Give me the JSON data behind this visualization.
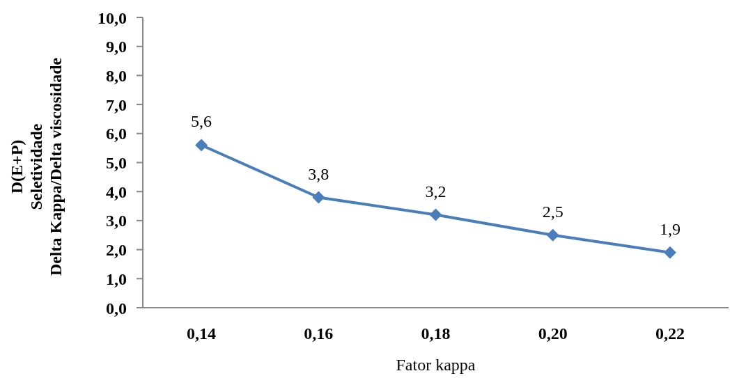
{
  "chart_data": {
    "type": "line",
    "xlabel": "Fator kappa",
    "ylabel": "D(E+P)\nSeletividade\nDelta Kappa/Delta viscosidade",
    "categories": [
      "0,14",
      "0,16",
      "0,18",
      "0,20",
      "0,22"
    ],
    "values": [
      5.6,
      3.8,
      3.2,
      2.5,
      1.9
    ],
    "value_labels": [
      "5,6",
      "3,8",
      "3,2",
      "2,5",
      "1,9"
    ],
    "color": "#4a7ebb",
    "ylim": [
      0,
      10
    ],
    "yticks": [
      {
        "value": 0,
        "label": "0,0"
      },
      {
        "value": 1,
        "label": "1,0"
      },
      {
        "value": 2,
        "label": "2,0"
      },
      {
        "value": 3,
        "label": "3,0"
      },
      {
        "value": 4,
        "label": "4,0"
      },
      {
        "value": 5,
        "label": "5,0"
      },
      {
        "value": 6,
        "label": "6,0"
      },
      {
        "value": 7,
        "label": "7,0"
      },
      {
        "value": 8,
        "label": "8,0"
      },
      {
        "value": 9,
        "label": "9,0"
      },
      {
        "value": 10,
        "label": "10,0"
      }
    ],
    "marker": "diamond",
    "line_style": "solid"
  }
}
